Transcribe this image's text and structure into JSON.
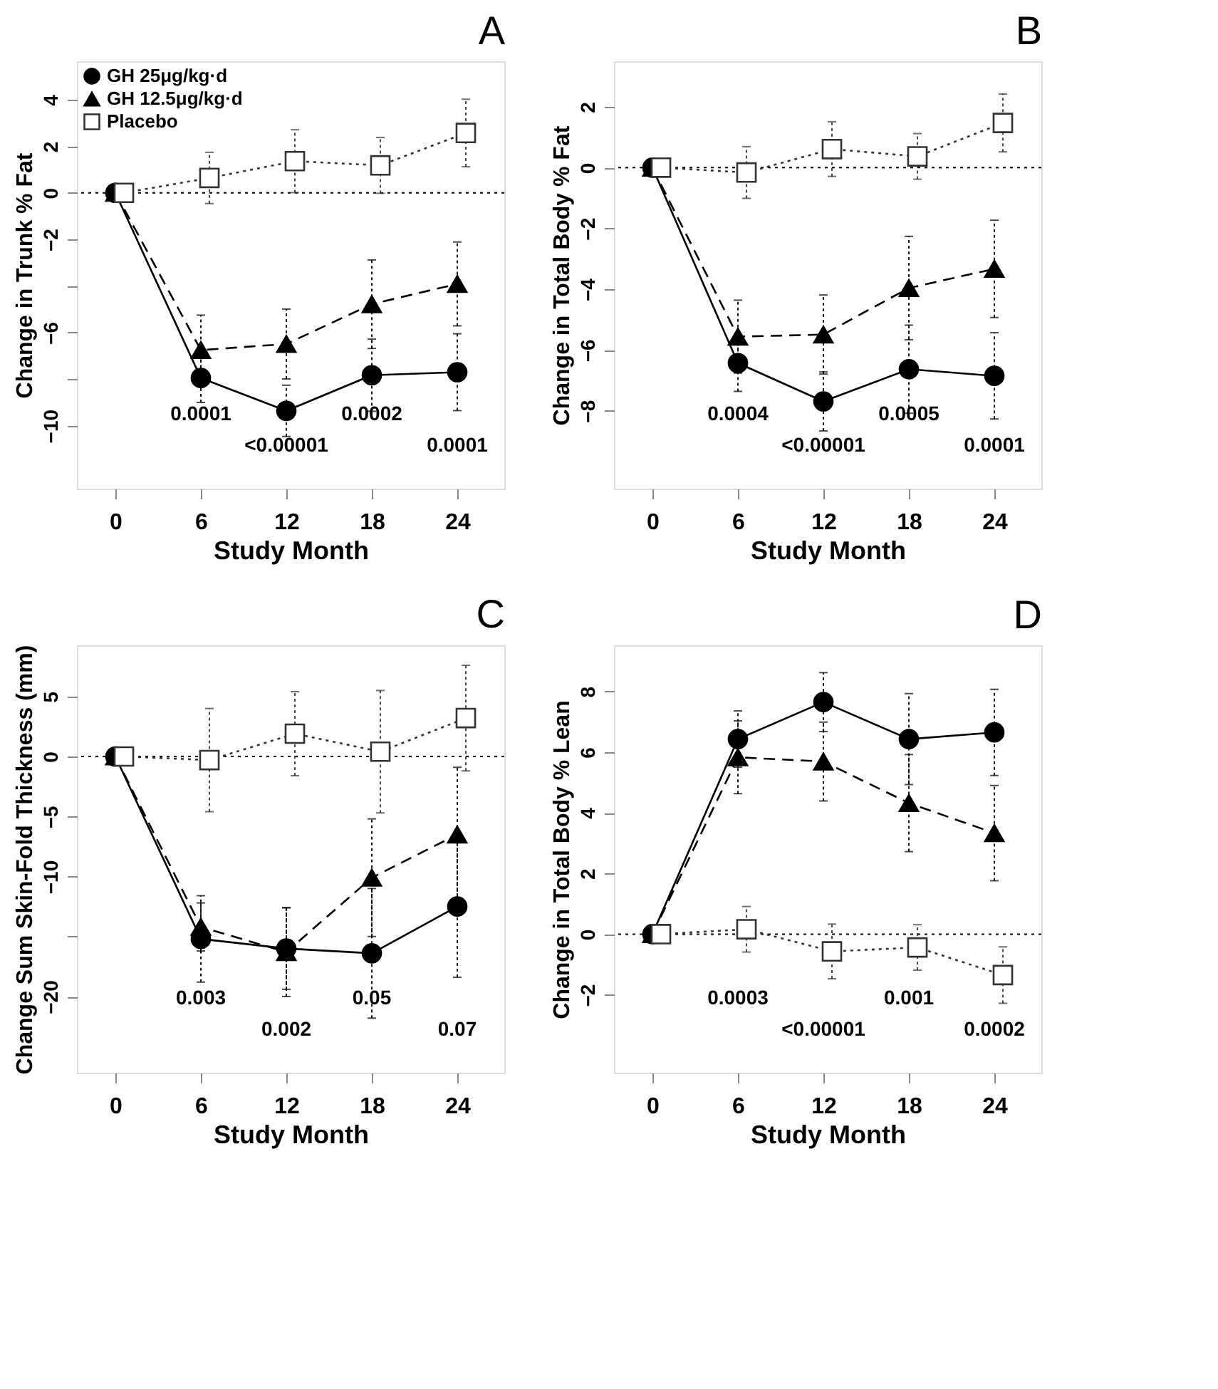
{
  "chart_data": [
    {
      "type": "line",
      "title": "A",
      "xlabel": "Study Month",
      "ylabel": "Change in Trunk % Fat",
      "x": [
        0,
        6,
        12,
        18,
        24
      ],
      "xlim": [
        -2.7,
        27.3
      ],
      "xticks": [
        0,
        6,
        12,
        18,
        24
      ],
      "ylim": [
        -12.7,
        5.65
      ],
      "yticks": [
        4,
        2,
        0,
        -2,
        {
          "value": -4,
          "label": null
        },
        -6,
        {
          "value": -8,
          "label": null
        },
        -10
      ],
      "grid": false,
      "legend": "top left",
      "series": [
        {
          "name": "GH 25μg/kg·d",
          "color": "#000000",
          "marker": "circle",
          "line_style": "solid",
          "values": [
            0,
            -7.95,
            -9.36,
            -7.83,
            -7.7
          ],
          "errors": [
            null,
            1.05,
            1.1,
            1.55,
            1.65
          ]
        },
        {
          "name": "GH 12.5μg/kg·d",
          "color": "#000000",
          "marker": "triangle",
          "line_style": "dashed",
          "values": [
            0,
            -6.75,
            -6.49,
            -4.78,
            -3.91
          ],
          "errors": [
            null,
            1.5,
            1.5,
            1.9,
            1.8
          ]
        },
        {
          "name": "Placebo",
          "color": "#333333",
          "marker": "square",
          "line_style": "dotted",
          "x": [
            0.6,
            6.6,
            12.6,
            18.6,
            24.6
          ],
          "values": [
            0,
            0.64,
            1.36,
            1.18,
            2.57
          ],
          "errors": [
            null,
            1.1,
            1.35,
            1.2,
            1.45
          ]
        }
      ],
      "ref_lines": [
        {
          "axis": "y",
          "value": 0,
          "line_style": "dotted"
        }
      ],
      "annotations": [
        "0.0001",
        "<0.00001",
        "0.0002",
        "0.0001"
      ]
    },
    {
      "type": "line",
      "title": "B",
      "xlabel": "Study Month",
      "ylabel": "Change in Total Body % Fat",
      "x": [
        0,
        6,
        12,
        18,
        24
      ],
      "xlim": [
        -2.7,
        27.3
      ],
      "xticks": [
        0,
        6,
        12,
        18,
        24
      ],
      "ylim": [
        -10.56,
        3.5
      ],
      "yticks": [
        2,
        0,
        -2,
        -4,
        -6,
        -8
      ],
      "grid": false,
      "series": [
        {
          "color": "#000000",
          "marker": "circle",
          "line_style": "solid",
          "values": [
            0,
            -6.43,
            -7.69,
            -6.63,
            -6.85
          ],
          "errors": [
            null,
            0.93,
            0.97,
            1.45,
            1.42
          ]
        },
        {
          "color": "#000000",
          "marker": "triangle",
          "line_style": "dashed",
          "values": [
            0,
            -5.56,
            -5.49,
            -3.96,
            -3.33
          ],
          "errors": [
            null,
            1.2,
            1.3,
            1.7,
            1.6
          ]
        },
        {
          "color": "#333333",
          "marker": "square",
          "line_style": "dotted",
          "x": [
            0.6,
            6.6,
            12.6,
            18.6,
            24.6
          ],
          "values": [
            0,
            -0.16,
            0.61,
            0.37,
            1.47
          ],
          "errors": [
            null,
            0.85,
            0.9,
            0.75,
            0.95
          ]
        }
      ],
      "ref_lines": [
        {
          "axis": "y",
          "value": 0,
          "line_style": "dotted"
        }
      ],
      "annotations": [
        "0.0004",
        "<0.00001",
        "0.0005",
        "0.0001"
      ]
    },
    {
      "type": "line",
      "title": "C",
      "xlabel": "Study Month",
      "ylabel": "Change Sum Skin-Fold Thickness (mm)",
      "x": [
        0,
        6,
        12,
        18,
        24
      ],
      "xlim": [
        -2.7,
        27.3
      ],
      "xticks": [
        0,
        6,
        12,
        18,
        24
      ],
      "ylim": [
        -26.35,
        9.26
      ],
      "yticks": [
        5,
        0,
        -5,
        -10,
        {
          "value": -15,
          "label": null
        },
        -20
      ],
      "grid": false,
      "series": [
        {
          "color": "#000000",
          "marker": "circle",
          "line_style": "solid",
          "values": [
            0,
            -15.2,
            -16.0,
            -16.4,
            -12.5
          ],
          "errors": [
            null,
            3.6,
            3.4,
            5.4,
            5.9
          ]
        },
        {
          "color": "#000000",
          "marker": "triangle",
          "line_style": "dashed",
          "values": [
            0,
            -14.2,
            -16.3,
            -10.1,
            -6.5
          ],
          "errors": [
            null,
            2.0,
            3.7,
            4.9,
            5.6
          ]
        },
        {
          "color": "#333333",
          "marker": "square",
          "line_style": "dotted",
          "x": [
            0.6,
            6.6,
            12.6,
            18.6,
            24.6
          ],
          "values": [
            0,
            -0.3,
            1.9,
            0.4,
            3.2
          ],
          "errors": [
            null,
            4.3,
            3.5,
            5.1,
            4.4
          ]
        }
      ],
      "ref_lines": [
        {
          "axis": "y",
          "value": 0,
          "line_style": "dotted"
        }
      ],
      "annotations": [
        "0.003",
        "0.002",
        "0.05",
        "0.07"
      ]
    },
    {
      "type": "line",
      "title": "D",
      "xlabel": "Study Month",
      "ylabel": "Change in Total Body % Lean",
      "x": [
        0,
        6,
        12,
        18,
        24
      ],
      "xlim": [
        -2.7,
        27.3
      ],
      "xticks": [
        0,
        6,
        12,
        18,
        24
      ],
      "ylim": [
        -4.57,
        9.52
      ],
      "yticks": [
        8,
        6,
        4,
        2,
        0,
        -2
      ],
      "grid": false,
      "series": [
        {
          "color": "#000000",
          "marker": "circle",
          "line_style": "solid",
          "values": [
            0,
            6.43,
            7.65,
            6.43,
            6.65
          ],
          "errors": [
            null,
            0.93,
            0.97,
            1.5,
            1.42
          ]
        },
        {
          "color": "#000000",
          "marker": "triangle",
          "line_style": "dashed",
          "values": [
            0,
            5.83,
            5.69,
            4.32,
            3.33
          ],
          "errors": [
            null,
            1.2,
            1.3,
            1.6,
            1.57
          ]
        },
        {
          "color": "#333333",
          "marker": "square",
          "line_style": "dotted",
          "x": [
            0.6,
            6.6,
            12.6,
            18.6,
            24.6
          ],
          "values": [
            0,
            0.16,
            -0.57,
            -0.44,
            -1.35
          ],
          "errors": [
            null,
            0.75,
            0.9,
            0.75,
            0.93
          ]
        }
      ],
      "ref_lines": [
        {
          "axis": "y",
          "value": 0,
          "line_style": "dotted"
        }
      ],
      "annotations": [
        "0.0003",
        "<0.00001",
        "0.001",
        "0.0002"
      ]
    }
  ]
}
